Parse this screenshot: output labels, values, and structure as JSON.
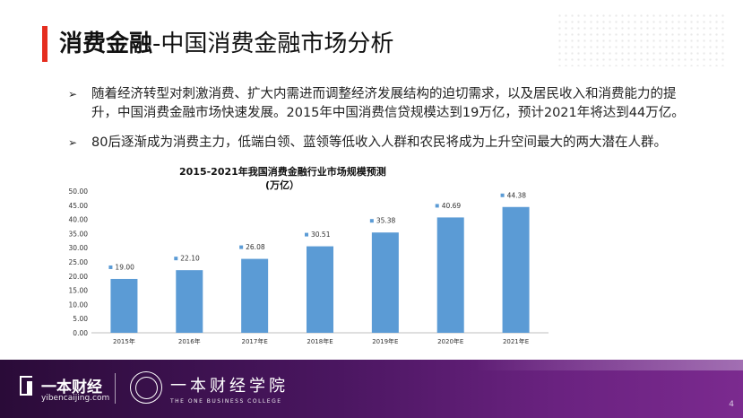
{
  "title": {
    "bold": "消费金融",
    "rest": "-中国消费金融市场分析"
  },
  "bullets": [
    {
      "icon": "arrow-bullet-icon",
      "text": "随着经济转型对刺激消费、扩大内需进而调整经济发展结构的迫切需求，以及居民收入和消费能力的提升，中国消费金融市场快速发展。2015年中国消费信贷规模达到19万亿，预计2021年将达到44万亿。"
    },
    {
      "icon": "arrow-bullet-icon",
      "text": "80后逐渐成为消费主力，低端白领、蓝领等低收入人群和农民将成为上升空间最大的两大潜在人群。"
    }
  ],
  "chart_title": "2015-2021年我国消费金融行业市场规模预测",
  "chart_unit": "(万亿）",
  "chart_data": {
    "type": "bar",
    "title": "2015-2021年我国消费金融行业市场规模预测",
    "ylabel": "(万亿）",
    "categories": [
      "2015年",
      "2016年",
      "2017年E",
      "2018年E",
      "2019年E",
      "2020年E",
      "2021年E"
    ],
    "values": [
      19.0,
      22.1,
      26.08,
      30.51,
      35.38,
      40.69,
      44.38
    ],
    "value_labels": [
      "19.00",
      "22.10",
      "26.08",
      "30.51",
      "35.38",
      "40.69",
      "44.38"
    ],
    "yticks": [
      "0.00",
      "5.00",
      "10.00",
      "15.00",
      "20.00",
      "25.00",
      "30.00",
      "35.00",
      "40.00",
      "45.00",
      "50.00"
    ],
    "ylim": [
      0,
      50
    ],
    "grid": false,
    "legend": "none",
    "bar_color": "#5b9bd5"
  },
  "footer": {
    "brand": "一本财经",
    "url": "yibencaijing.com",
    "college_cn": "一本财经学院",
    "college_en": "THE ONE BUSINESS COLLEGE",
    "page_number": "4"
  }
}
